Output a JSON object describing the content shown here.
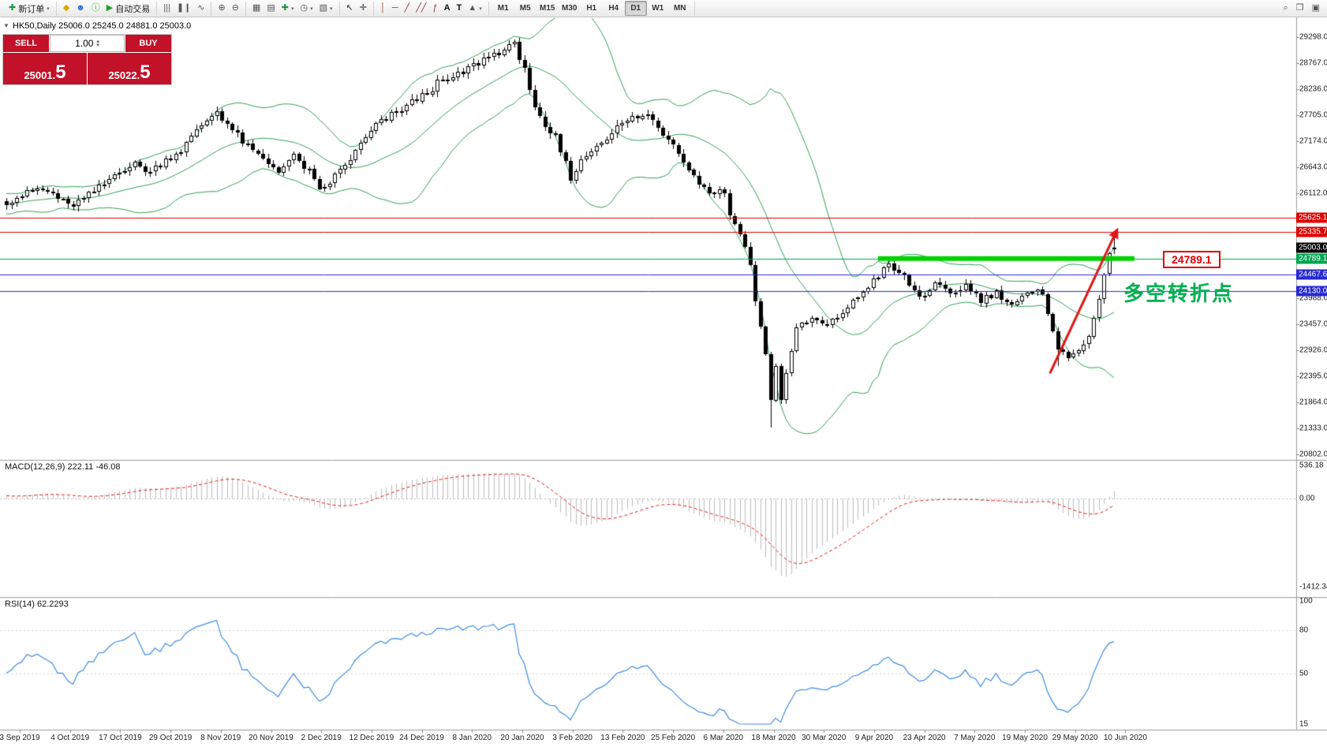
{
  "toolbar": {
    "groups": [
      {
        "name": "trade",
        "items": [
          {
            "name": "new-order-button",
            "icon": "candle-plus",
            "label": "新订单",
            "caret": true
          }
        ]
      },
      {
        "name": "apps",
        "items": [
          {
            "name": "metaeditor-button",
            "icon": "diamond"
          },
          {
            "name": "community-button",
            "icon": "person"
          },
          {
            "name": "help-button",
            "icon": "info"
          },
          {
            "name": "autotrading-button",
            "icon": "play",
            "label": "自动交易"
          }
        ]
      },
      {
        "name": "chart-types",
        "items": [
          {
            "name": "bar-chart-button",
            "icon": "bars"
          },
          {
            "name": "candle-chart-button",
            "icon": "candles"
          },
          {
            "name": "line-chart-button",
            "icon": "line"
          }
        ]
      },
      {
        "name": "zoom",
        "items": [
          {
            "name": "zoom-in-button",
            "icon": "zoom-in"
          },
          {
            "name": "zoom-out-button",
            "icon": "zoom-out"
          }
        ]
      },
      {
        "name": "windows",
        "items": [
          {
            "name": "tile-windows-button",
            "icon": "tile"
          },
          {
            "name": "arrange-windows-button",
            "icon": "arrange"
          },
          {
            "name": "new-chart-button",
            "icon": "plus",
            "caret": true
          },
          {
            "name": "profiles-button",
            "icon": "clock",
            "caret": true
          },
          {
            "name": "templates-button",
            "icon": "template",
            "caret": true
          }
        ]
      },
      {
        "name": "pointer",
        "items": [
          {
            "name": "cursor-button",
            "icon": "cursor"
          },
          {
            "name": "crosshair-button",
            "icon": "crosshair"
          }
        ]
      },
      {
        "name": "objects",
        "items": [
          {
            "name": "vertical-line-button",
            "icon": "vline"
          },
          {
            "name": "horizontal-line-button",
            "icon": "hline"
          },
          {
            "name": "trendline-button",
            "icon": "trendline"
          },
          {
            "name": "channel-button",
            "icon": "channel"
          },
          {
            "name": "fibonacci-button",
            "icon": "fibo"
          },
          {
            "name": "text-button",
            "icon": "text-a"
          },
          {
            "name": "label-button",
            "icon": "text-t"
          },
          {
            "name": "arrows-button",
            "icon": "shapes",
            "caret": true
          }
        ]
      }
    ],
    "timeframes": [
      "M1",
      "M5",
      "M15",
      "M30",
      "H1",
      "H4",
      "D1",
      "W1",
      "MN"
    ],
    "active_timeframe": "D1",
    "right_items": [
      {
        "name": "search-button",
        "icon": "magnifier"
      },
      {
        "name": "data-window-button",
        "icon": "window"
      },
      {
        "name": "terminal-button",
        "icon": "panel"
      }
    ]
  },
  "chart": {
    "symbol_ohlc": "HK50,Daily 25006.0 25245.0 24881.0 25003.0"
  },
  "trade_panel": {
    "sell_label": "SELL",
    "buy_label": "BUY",
    "volume": "1.00",
    "sell_price": "25001.5",
    "buy_price": "25022.5",
    "red": "#c11229"
  },
  "annotations": {
    "level_box": "24789.1",
    "pivot_text": "多空转折点"
  },
  "chart_data": {
    "type": "candlestick",
    "symbol": "HK50",
    "period": "Daily",
    "ohlc": {
      "o": 25006.0,
      "h": 25245.0,
      "l": 24881.0,
      "c": 25003.0
    },
    "price_axis": {
      "labels": [
        {
          "t": "29298.0",
          "p": 29298
        },
        {
          "t": "28767.0",
          "p": 28767
        },
        {
          "t": "28236.0",
          "p": 28236
        },
        {
          "t": "27705.0",
          "p": 27705
        },
        {
          "t": "27174.0",
          "p": 27174
        },
        {
          "t": "26643.0",
          "p": 26643
        },
        {
          "t": "26112.0",
          "p": 26112
        },
        {
          "t": "23988.0",
          "p": 23988
        },
        {
          "t": "23457.0",
          "p": 23457
        },
        {
          "t": "22926.0",
          "p": 22926
        },
        {
          "t": "22395.0",
          "p": 22395
        },
        {
          "t": "21864.0",
          "p": 21864
        },
        {
          "t": "21333.0",
          "p": 21333
        },
        {
          "t": "20802.0",
          "p": 20802
        }
      ],
      "max": 29298,
      "min": 20802
    },
    "dates": [
      "3 Sep 2019",
      "4 Oct 2019",
      "17 Oct 2019",
      "29 Oct 2019",
      "8 Nov 2019",
      "20 Nov 2019",
      "2 Dec 2019",
      "12 Dec 2019",
      "24 Dec 2019",
      "8 Jan 2020",
      "20 Jan 2020",
      "3 Feb 2020",
      "13 Feb 2020",
      "25 Feb 2020",
      "6 Mar 2020",
      "18 Mar 2020",
      "30 Mar 2020",
      "9 Apr 2020",
      "23 Apr 2020",
      "7 May 2020",
      "19 May 2020",
      "29 May 2020",
      "10 Jun 2020"
    ],
    "candles": {
      "count": 217,
      "warmup": 45,
      "noise_pct": 0.3,
      "anchors": [
        [
          0,
          25950
        ],
        [
          3,
          26080
        ],
        [
          6,
          26200
        ],
        [
          9,
          26100
        ],
        [
          12,
          25850
        ],
        [
          15,
          26000
        ],
        [
          19,
          26300
        ],
        [
          22,
          26600
        ],
        [
          25,
          26700
        ],
        [
          28,
          26550
        ],
        [
          31,
          26800
        ],
        [
          34,
          27000
        ],
        [
          38,
          27500
        ],
        [
          41,
          27800
        ],
        [
          44,
          27400
        ],
        [
          47,
          27050
        ],
        [
          50,
          26800
        ],
        [
          53,
          26600
        ],
        [
          56,
          26850
        ],
        [
          59,
          26550
        ],
        [
          61,
          26150
        ],
        [
          63,
          26350
        ],
        [
          66,
          26700
        ],
        [
          69,
          27100
        ],
        [
          72,
          27500
        ],
        [
          75,
          27700
        ],
        [
          78,
          27900
        ],
        [
          81,
          28100
        ],
        [
          84,
          28350
        ],
        [
          87,
          28450
        ],
        [
          90,
          28650
        ],
        [
          93,
          28850
        ],
        [
          96,
          29000
        ],
        [
          99,
          29120
        ],
        [
          101,
          28700
        ],
        [
          103,
          27800
        ],
        [
          105,
          27400
        ],
        [
          107,
          27250
        ],
        [
          110,
          26450
        ],
        [
          113,
          26900
        ],
        [
          116,
          27200
        ],
        [
          119,
          27450
        ],
        [
          122,
          27650
        ],
        [
          125,
          27700
        ],
        [
          128,
          27350
        ],
        [
          131,
          27000
        ],
        [
          134,
          26450
        ],
        [
          137,
          26150
        ],
        [
          140,
          26150
        ],
        [
          141,
          25650
        ],
        [
          143,
          25350
        ],
        [
          145,
          24650
        ],
        [
          146,
          23950
        ],
        [
          148,
          22800
        ],
        [
          149,
          21950
        ],
        [
          150,
          22600
        ],
        [
          151,
          21900
        ],
        [
          152,
          22500
        ],
        [
          154,
          23350
        ],
        [
          157,
          23550
        ],
        [
          160,
          23400
        ],
        [
          163,
          23700
        ],
        [
          166,
          24000
        ],
        [
          169,
          24350
        ],
        [
          172,
          24650
        ],
        [
          175,
          24400
        ],
        [
          178,
          24000
        ],
        [
          181,
          24250
        ],
        [
          184,
          24050
        ],
        [
          187,
          24250
        ],
        [
          190,
          23950
        ],
        [
          193,
          24100
        ],
        [
          196,
          23850
        ],
        [
          199,
          24050
        ],
        [
          202,
          24100
        ],
        [
          204,
          23350
        ],
        [
          205,
          22950
        ],
        [
          207,
          22750
        ],
        [
          209,
          22950
        ],
        [
          211,
          23250
        ],
        [
          213,
          23900
        ],
        [
          214,
          24400
        ],
        [
          215,
          24950
        ],
        [
          216,
          25003
        ]
      ],
      "high_overrides": [
        [
          99,
          29250
        ],
        [
          172,
          24830
        ]
      ],
      "low_overrides": [
        [
          149,
          21350
        ],
        [
          205,
          22600
        ]
      ],
      "last": {
        "o": 25006.0,
        "h": 25245.0,
        "l": 24881.0,
        "c": 25003.0
      }
    },
    "lines": {
      "h": [
        {
          "p": 25625.1,
          "c": "#e00000",
          "label": "25625.1"
        },
        {
          "p": 25335.7,
          "c": "#e00000",
          "label": "25335.7"
        },
        {
          "p": 24789.1,
          "c": "#00a651",
          "label": "24789.1"
        },
        {
          "p": 24467.6,
          "c": "#2828d7",
          "label": "24467.6"
        },
        {
          "p": 24130.0,
          "c": "#2828d7",
          "label": "24130.0"
        }
      ],
      "current": {
        "p": 25003.0,
        "c": "#000000",
        "label": "25003.0"
      },
      "segment": {
        "p": 24789.1,
        "from": 170,
        "to": 220,
        "c": "#00d200",
        "w": 6
      },
      "arrow": {
        "from_idx": 203.5,
        "from_price": 22450,
        "to_idx": 216.8,
        "to_price": 25420,
        "c": "#e01515"
      }
    },
    "indicators": {
      "bollinger": {
        "period": 20,
        "deviation": 2,
        "color": "#33a05c"
      },
      "macd": {
        "label": "MACD(12,26,9) 222.11 -46.08",
        "fast": 12,
        "slow": 26,
        "signal": 9,
        "value_main": 222.11,
        "value_signal": -46.08,
        "hist_color": "#bdbdbd",
        "signal_color": "#e02020",
        "axis": [
          {
            "t": "536.18",
            "v": 536.18
          },
          {
            "t": "0.00",
            "v": 0
          },
          {
            "t": "-1412.34",
            "v": -1412.34
          }
        ]
      },
      "rsi": {
        "label": "RSI(14) 62.2293",
        "period": 14,
        "value": 62.2293,
        "color": "#3f8ce0",
        "axis": [
          {
            "t": "100",
            "v": 100
          },
          {
            "t": "80",
            "v": 80
          },
          {
            "t": "50",
            "v": 50
          },
          {
            "t": "15",
            "v": 15
          }
        ]
      }
    },
    "colors": {
      "bull": "#ffffff",
      "bear": "#000000",
      "outline": "#000000",
      "background": "#ffffff"
    }
  }
}
